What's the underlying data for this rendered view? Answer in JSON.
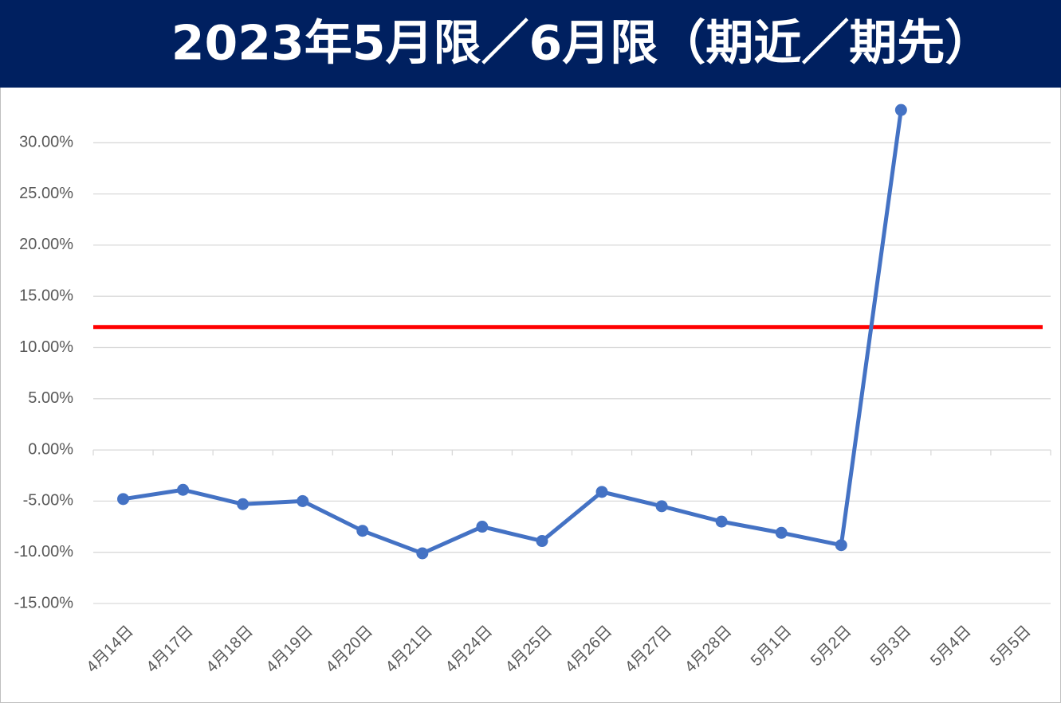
{
  "chart_data": {
    "type": "line",
    "title": "2023年5月限／6月限（期近／期先）",
    "categories": [
      "4月14日",
      "4月17日",
      "4月18日",
      "4月19日",
      "4月20日",
      "4月21日",
      "4月24日",
      "4月25日",
      "4月26日",
      "4月27日",
      "4月28日",
      "5月1日",
      "5月2日",
      "5月3日",
      "5月4日",
      "5月5日"
    ],
    "series": [
      {
        "color": "#4472c4",
        "values": [
          -4.8,
          -3.9,
          -5.3,
          -5.0,
          -7.9,
          -10.1,
          -7.5,
          -8.9,
          -4.1,
          -5.5,
          -7.0,
          -8.1,
          -9.3,
          33.2,
          null,
          null
        ]
      }
    ],
    "reference_line": {
      "value": 12,
      "color": "#ff0000"
    },
    "ylim": [
      -15,
      35
    ],
    "yticks": [
      {
        "value": -15,
        "label": "-15.00%"
      },
      {
        "value": -10,
        "label": "-10.00%"
      },
      {
        "value": -5,
        "label": "-5.00%"
      },
      {
        "value": 0,
        "label": "0.00%"
      },
      {
        "value": 5,
        "label": "5.00%"
      },
      {
        "value": 10,
        "label": "10.00%"
      },
      {
        "value": 15,
        "label": "15.00%"
      },
      {
        "value": 20,
        "label": "20.00%"
      },
      {
        "value": 25,
        "label": "25.00%"
      },
      {
        "value": 30,
        "label": "30.00%"
      }
    ],
    "grid": true
  }
}
